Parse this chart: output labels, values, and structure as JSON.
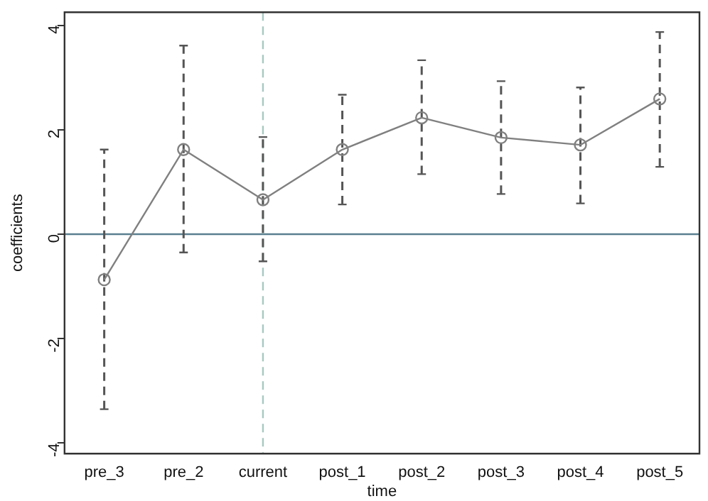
{
  "chart_data": {
    "type": "line",
    "xlabel": "time",
    "ylabel": "coefficients",
    "categories": [
      "pre_3",
      "pre_2",
      "current",
      "post_1",
      "post_2",
      "post_3",
      "post_4",
      "post_5"
    ],
    "series": [
      {
        "color": "#808080",
        "values": [
          -0.87,
          1.62,
          0.66,
          1.62,
          2.23,
          1.85,
          1.71,
          2.59
        ],
        "errors": [
          [
            -3.35,
            1.62
          ],
          [
            -0.35,
            3.61
          ],
          [
            -0.52,
            1.86
          ],
          [
            0.57,
            2.67
          ],
          [
            1.15,
            3.33
          ],
          [
            0.77,
            2.93
          ],
          [
            0.59,
            2.81
          ],
          [
            1.29,
            3.87
          ]
        ]
      }
    ],
    "ylim": [
      -4.2,
      4.25
    ],
    "yticks": [
      -4,
      -2,
      0,
      2,
      4
    ],
    "grid": false,
    "legend": false,
    "marker": "circle",
    "line_style": "solid",
    "ref_lines": [
      {
        "axis": "y",
        "value": 0,
        "color": "#5a7f8f",
        "line_style": "solid"
      },
      {
        "axis": "x",
        "value": "current",
        "color": "#a8c8c0",
        "line_style": "dashed"
      }
    ]
  }
}
